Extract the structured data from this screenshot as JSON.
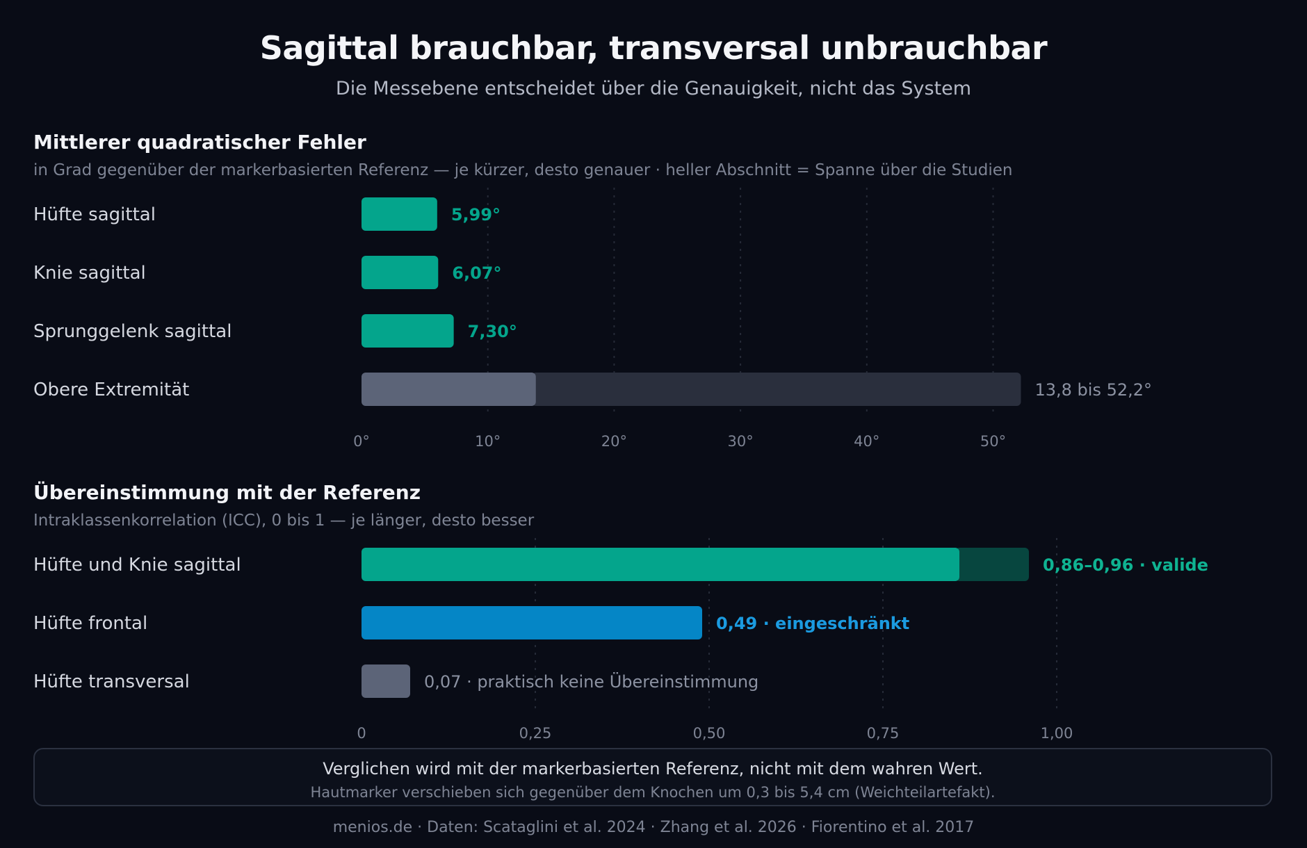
{
  "header": {
    "title": "Sagittal brauchbar, transversal unbrauchbar",
    "subtitle": "Die Messebene entscheidet über die Genauigkeit, nicht das System"
  },
  "chart_data": [
    {
      "type": "bar",
      "orientation": "horizontal",
      "title": "Mittlerer quadratischer Fehler",
      "subtitle": "in Grad gegenüber der markerbasierten Referenz — je kürzer, desto genauer · heller Abschnitt = Spanne über die Studien",
      "xlim": [
        0,
        52.2
      ],
      "ticks": [
        0,
        10,
        20,
        30,
        40,
        50
      ],
      "tick_labels": [
        "0°",
        "10°",
        "20°",
        "30°",
        "40°",
        "50°"
      ],
      "grid": true,
      "categories": [
        "Hüfte sagittal",
        "Knie sagittal",
        "Sprunggelenk sagittal",
        "Obere Extremität"
      ],
      "bars": [
        {
          "category": "Hüfte sagittal",
          "value": 5.99,
          "label": "5,99°",
          "color": "#04a58c"
        },
        {
          "category": "Knie sagittal",
          "value": 6.07,
          "label": "6,07°",
          "color": "#04a58c"
        },
        {
          "category": "Sprunggelenk sagittal",
          "value": 7.3,
          "label": "7,30°",
          "color": "#04a58c"
        },
        {
          "category": "Obere Extremität",
          "value": 13.8,
          "range_max": 52.2,
          "label": "13,8 bis 52,2°",
          "color": "#5c6478",
          "range_color": "#2a2f3d",
          "label_color": "#8c92a2"
        }
      ]
    },
    {
      "type": "bar",
      "orientation": "horizontal",
      "title": "Übereinstimmung mit der Referenz",
      "subtitle": "Intraklassenkorrelation (ICC), 0 bis 1 — je länger, desto besser",
      "xlim": [
        0,
        1
      ],
      "ticks": [
        0,
        0.25,
        0.5,
        0.75,
        1.0
      ],
      "tick_labels": [
        "0",
        "0,25",
        "0,50",
        "0,75",
        "1,00"
      ],
      "grid": true,
      "categories": [
        "Hüfte und Knie sagittal",
        "Hüfte frontal",
        "Hüfte transversal"
      ],
      "bars": [
        {
          "category": "Hüfte und Knie sagittal",
          "value": 0.86,
          "range_max": 0.96,
          "label": "0,86–0,96 · valide",
          "color": "#04a58c",
          "range_color": "#07463f",
          "label_color": "#0fb392"
        },
        {
          "category": "Hüfte frontal",
          "value": 0.49,
          "label": "0,49 · eingeschränkt",
          "color": "#0586c6",
          "label_color": "#1b9be0"
        },
        {
          "category": "Hüfte transversal",
          "value": 0.07,
          "label": "0,07 · praktisch keine Übereinstimmung",
          "color": "#5c6478",
          "label_color": "#8c92a2"
        }
      ]
    }
  ],
  "note": {
    "main": "Verglichen wird mit der markerbasierten Referenz, nicht mit dem wahren Wert.",
    "sub": "Hautmarker verschieben sich gegenüber dem Knochen um 0,3 bis 5,4 cm (Weichteilartefakt)."
  },
  "footer": "menios.de · Daten: Scataglini et al. 2024 · Zhang et al. 2026 · Fiorentino et al. 2017"
}
